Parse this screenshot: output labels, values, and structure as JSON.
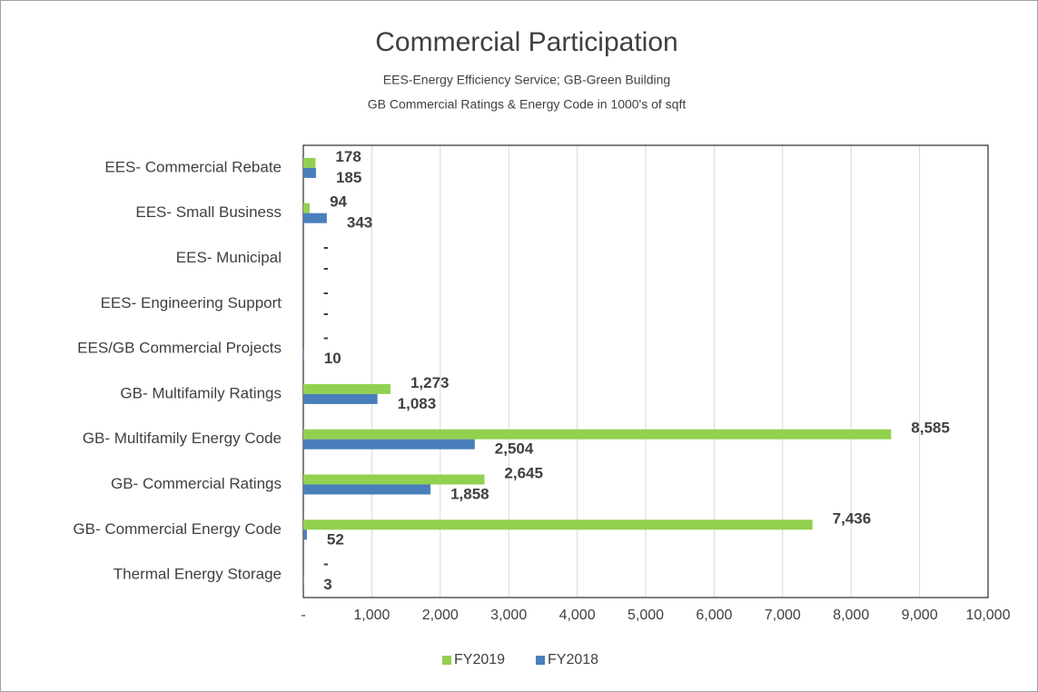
{
  "chart_data": {
    "type": "hbar",
    "title": "Commercial Participation",
    "subtitle": [
      "EES-Energy Efficiency Service; GB-Green Building",
      "GB Commercial Ratings & Energy Code in 1000's of sqft"
    ],
    "categories": [
      "EES- Commercial Rebate",
      "EES- Small Business",
      "EES- Municipal",
      "EES- Engineering Support",
      "EES/GB Commercial Projects",
      "GB- Multifamily Ratings",
      "GB- Multifamily Energy Code",
      "GB- Commercial Ratings",
      "GB- Commercial Energy Code",
      "Thermal Energy Storage"
    ],
    "series": [
      {
        "name": "FY2019",
        "color": "#92d050",
        "values": [
          178,
          94,
          0,
          0,
          0,
          1273,
          8585,
          2645,
          7436,
          0
        ],
        "value_labels": [
          "178",
          "94",
          "-",
          "-",
          "-",
          "1,273",
          "8,585",
          "2,645",
          "7,436",
          "-"
        ]
      },
      {
        "name": "FY2018",
        "color": "#4a7ebb",
        "values": [
          185,
          343,
          0,
          0,
          10,
          1083,
          2504,
          1858,
          52,
          3
        ],
        "value_labels": [
          "185",
          "343",
          "-",
          "-",
          "10",
          "1,083",
          "2,504",
          "1,858",
          "52",
          "3"
        ]
      }
    ],
    "xlim": [
      0,
      10000
    ],
    "xticks": [
      {
        "value": 0,
        "label": "-"
      },
      {
        "value": 1000,
        "label": "1,000"
      },
      {
        "value": 2000,
        "label": "2,000"
      },
      {
        "value": 3000,
        "label": "3,000"
      },
      {
        "value": 4000,
        "label": "4,000"
      },
      {
        "value": 5000,
        "label": "5,000"
      },
      {
        "value": 6000,
        "label": "6,000"
      },
      {
        "value": 7000,
        "label": "7,000"
      },
      {
        "value": 8000,
        "label": "8,000"
      },
      {
        "value": 9000,
        "label": "9,000"
      },
      {
        "value": 10000,
        "label": "10,000"
      }
    ],
    "grid": true,
    "legend": "bottom"
  }
}
